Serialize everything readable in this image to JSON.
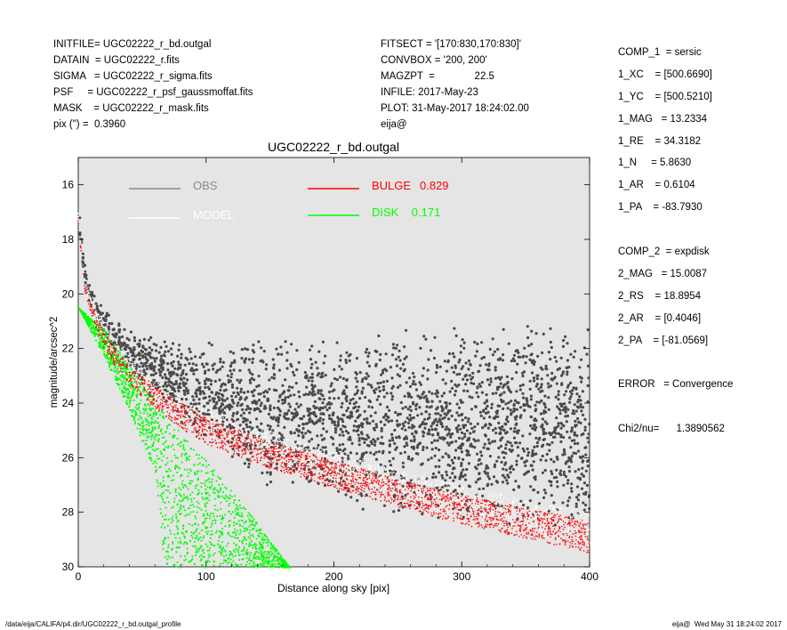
{
  "header_left": [
    "INITFILE= UGC02222_r_bd.outgal",
    "DATAIN  = UGC02222_r.fits",
    "SIGMA   = UGC02222_r_sigma.fits",
    "PSF     = UGC02222_r_psf_gaussmoffat.fits",
    "MASK    = UGC02222_r_mask.fits",
    "pix (\") =  0.3960"
  ],
  "header_mid": [
    "FITSECT = '[170:830,170:830]'",
    "CONVBOX = '200, 200'",
    "MAGZPT  =              22.5",
    "INFILE: 2017-May-23",
    "PLOT: 31-May-2017 18:24:02.00",
    "eija@"
  ],
  "header_right": [
    "COMP_1  = sersic",
    "1_XC    = [500.6690]",
    "1_YC    = [500.5210]",
    "1_MAG   = 13.2334",
    "1_RE    = 34.3182",
    "1_N     = 5.8630",
    "1_AR    = 0.6104",
    "1_PA    = -83.7930",
    "",
    "COMP_2  = expdisk",
    "2_MAG   = 15.0087",
    "2_RS    = 18.8954",
    "2_AR    = [0.4046]",
    "2_PA    = [-81.0569]",
    "",
    "ERROR   = Convergence",
    "",
    "Chi2/nu=      1.3890562"
  ],
  "footer": {
    "left": "/data/eija/CALIFA/p4.dir/UGC02222_r_bd.outgal_profile",
    "right": "eija@  Wed May 31 18:24:02 2017"
  },
  "colors": {
    "background": "#e5e5e5",
    "obs": "#4a4a4a",
    "model": "#ffffff",
    "bulge": "#ff0000",
    "disk": "#00ff00"
  },
  "chart_data": {
    "type": "scatter",
    "title": "UGC02222_r_bd.outgal",
    "xlabel": "Distance along sky [pix]",
    "ylabel": "magnitude/arcsec^2",
    "xlim": [
      0,
      400
    ],
    "ylim": [
      30,
      15
    ],
    "xticks": [
      0,
      100,
      200,
      300,
      400
    ],
    "yticks": [
      16,
      18,
      20,
      22,
      24,
      26,
      28,
      30
    ],
    "grid": false,
    "legend": [
      {
        "label": "OBS",
        "value": ""
      },
      {
        "label": "MODEL",
        "value": ""
      },
      {
        "label": "BULGE",
        "value": "0.829"
      },
      {
        "label": "DISK",
        "value": "0.171"
      }
    ],
    "series": [
      {
        "name": "OBS",
        "color": "#4a4a4a",
        "x": [
          0,
          5,
          10,
          20,
          30,
          50,
          75,
          100,
          125,
          150,
          200,
          250,
          300,
          350,
          400
        ],
        "y": [
          17.0,
          19.3,
          20.2,
          21.1,
          21.7,
          22.5,
          23.1,
          23.6,
          24.0,
          24.3,
          24.6,
          24.8,
          24.8,
          24.8,
          24.9
        ],
        "spread": [
          0.2,
          0.3,
          0.3,
          0.4,
          0.5,
          0.7,
          0.9,
          1.2,
          1.5,
          1.8,
          2.0,
          2.2,
          2.3,
          2.4,
          2.5
        ]
      },
      {
        "name": "MODEL",
        "color": "#ffffff",
        "x": [
          0,
          5,
          10,
          20,
          30,
          50,
          75,
          100,
          150,
          200,
          250,
          300,
          350,
          400
        ],
        "y": [
          17.1,
          19.5,
          20.4,
          21.4,
          22.1,
          23.1,
          24.0,
          24.6,
          25.5,
          26.2,
          26.9,
          27.5,
          28.1,
          28.6
        ],
        "width": [
          0.2,
          0.3,
          0.4,
          0.5,
          0.6,
          0.6,
          0.7,
          0.7,
          0.8,
          0.8,
          0.9,
          1.0,
          1.1,
          1.2
        ]
      },
      {
        "name": "BULGE",
        "color": "#ff0000",
        "x": [
          0,
          5,
          10,
          20,
          30,
          50,
          75,
          100,
          150,
          200,
          250,
          300,
          350,
          400
        ],
        "y": [
          17.3,
          19.7,
          20.6,
          21.7,
          22.4,
          23.4,
          24.3,
          25.0,
          25.9,
          26.6,
          27.3,
          27.9,
          28.4,
          28.9
        ],
        "width": [
          0.2,
          0.3,
          0.4,
          0.6,
          0.7,
          0.8,
          0.9,
          1.0,
          1.0,
          1.0,
          1.0,
          1.1,
          1.1,
          1.2
        ]
      },
      {
        "name": "DISK",
        "color": "#00ff00",
        "x": [
          0,
          20,
          40,
          60,
          67,
          100,
          130,
          165
        ],
        "y_bright": [
          20.5,
          22.3,
          24.3,
          26.6,
          30.0,
          30.0,
          30.0,
          30.0
        ],
        "y_faint": [
          20.5,
          21.3,
          22.6,
          23.9,
          24.3,
          26.1,
          27.8,
          30.0
        ]
      }
    ]
  }
}
